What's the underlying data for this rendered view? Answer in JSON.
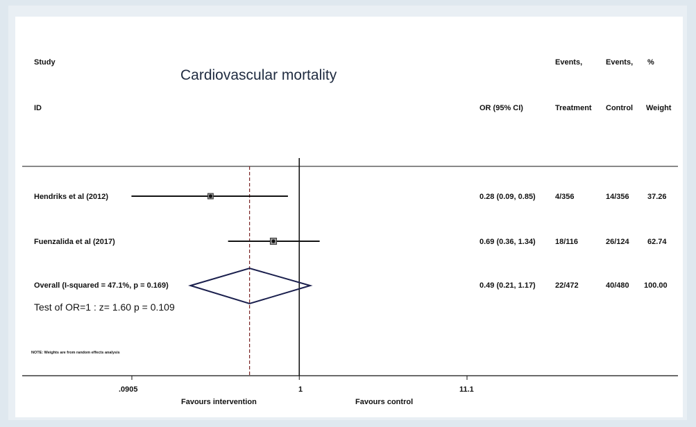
{
  "header": {
    "study": "Study",
    "id": "ID",
    "title": "Cardiovascular mortality",
    "or_col": "OR (95% CI)",
    "events_treatment_top": "Events,",
    "events_treatment_bottom": "Treatment",
    "events_control_top": "Events,",
    "events_control_bottom": "Control",
    "weight_top": "%",
    "weight_bottom": "Weight"
  },
  "rows": [
    {
      "study": "Hendriks et al (2012)",
      "or_ci": "0.28 (0.09, 0.85)",
      "treatment": "4/356",
      "control": "14/356",
      "weight": "37.26"
    },
    {
      "study": "Fuenzalida et al (2017)",
      "or_ci": "0.69 (0.36, 1.34)",
      "treatment": "18/116",
      "control": "26/124",
      "weight": "62.74"
    }
  ],
  "overall": {
    "label": "Overall  (I-squared = 47.1%, p = 0.169)",
    "or_ci": "0.49 (0.21, 1.17)",
    "treatment": "22/472",
    "control": "40/480",
    "weight": "100.00",
    "test": "Test of OR=1 : z=   1.60 p = 0.109"
  },
  "note": "NOTE: Weights are from random effects analysis",
  "axis": {
    "ticks": [
      ".0905",
      "1",
      "11.1"
    ],
    "favours_left": "Favours intervention",
    "favours_right": "Favours control"
  },
  "colors": {
    "diamond": "#1a1f4d",
    "reference": "#7a2525",
    "ink": "#111111"
  },
  "chart_data": {
    "type": "forest",
    "title": "Cardiovascular mortality",
    "xscale": "log",
    "xlim": [
      0.0905,
      11.1
    ],
    "xticks": [
      0.0905,
      1,
      11.1
    ],
    "null_line": 1,
    "pooled_line": 0.49,
    "studies": [
      {
        "name": "Hendriks et al (2012)",
        "or": 0.28,
        "lower": 0.09,
        "upper": 0.85,
        "weight": 37.26
      },
      {
        "name": "Fuenzalida et al (2017)",
        "or": 0.69,
        "lower": 0.36,
        "upper": 1.34,
        "weight": 62.74
      }
    ],
    "overall": {
      "or": 0.49,
      "lower": 0.21,
      "upper": 1.17
    }
  }
}
